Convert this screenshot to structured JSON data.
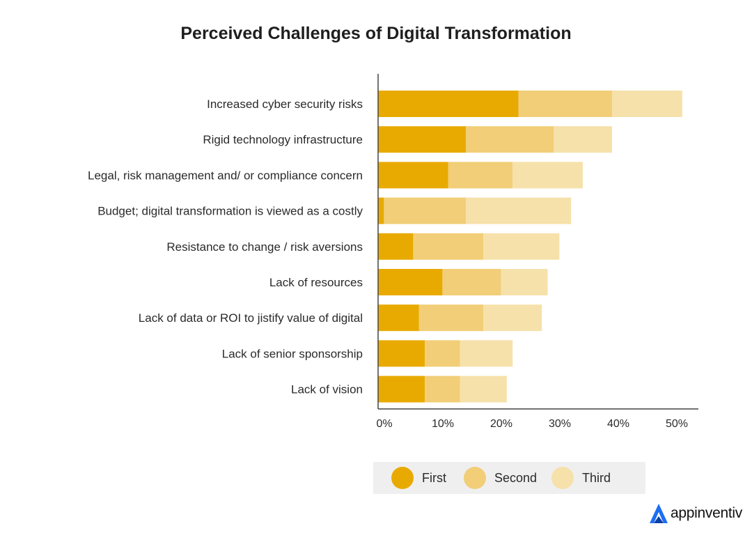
{
  "chart_data": {
    "type": "bar",
    "orientation": "horizontal",
    "stacked": true,
    "title": "Perceived Challenges of Digital Transformation",
    "categories": [
      "Increased cyber security risks",
      "Rigid technology infrastructure",
      "Legal, risk management and/ or compliance concern",
      "Budget; digital transformation is viewed as a costly",
      "Resistance to change / risk aversions",
      "Lack of resources",
      "Lack of data or ROI to jistify value of digital",
      "Lack of senior sponsorship",
      "Lack of vision"
    ],
    "series": [
      {
        "name": "First",
        "color": "#E8AA00",
        "values": [
          24,
          15,
          12,
          1,
          6,
          11,
          7,
          8,
          8
        ]
      },
      {
        "name": "Second",
        "color": "#F1CE77",
        "values": [
          16,
          15,
          11,
          14,
          12,
          10,
          11,
          6,
          6
        ]
      },
      {
        "name": "Third",
        "color": "#F6E1AA",
        "values": [
          12,
          10,
          12,
          18,
          13,
          8,
          10,
          9,
          8
        ]
      }
    ],
    "xlim": [
      0,
      50
    ],
    "xticks": [
      0,
      10,
      20,
      30,
      40,
      50
    ],
    "xtick_labels": [
      "0%",
      "10%",
      "20%",
      "30%",
      "40%",
      "50%"
    ],
    "grid": false,
    "legend_position": "bottom"
  },
  "brand": {
    "name": "appinventiv",
    "icon": "appinventiv-logo-icon",
    "color": "#1D6FF2"
  }
}
